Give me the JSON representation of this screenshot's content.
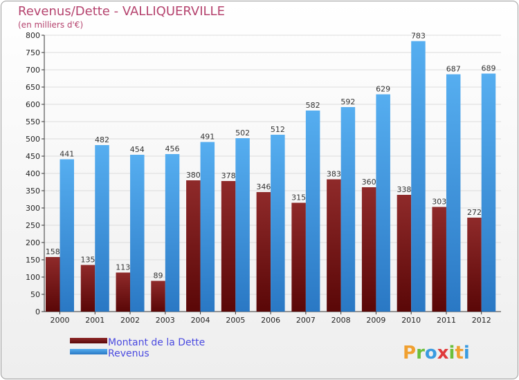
{
  "chart_data": {
    "type": "bar",
    "title": "Revenus/Dette - VALLIQUERVILLE",
    "subtitle": "(en milliers d'€)",
    "categories": [
      "2000",
      "2001",
      "2002",
      "2003",
      "2004",
      "2005",
      "2006",
      "2007",
      "2008",
      "2009",
      "2010",
      "2011",
      "2012"
    ],
    "series": [
      {
        "name": "Montant de la Dette",
        "values": [
          158,
          135,
          113,
          89,
          380,
          378,
          346,
          315,
          383,
          360,
          338,
          303,
          272
        ],
        "color": "#8b1a1a"
      },
      {
        "name": "Revenus",
        "values": [
          441,
          482,
          454,
          456,
          491,
          502,
          512,
          582,
          592,
          629,
          783,
          687,
          689
        ],
        "color": "#4aa0e6"
      }
    ],
    "ylim": [
      0,
      800
    ],
    "yticks": [
      0,
      50,
      100,
      150,
      200,
      250,
      300,
      350,
      400,
      450,
      500,
      550,
      600,
      650,
      700,
      750,
      800
    ],
    "grid": true,
    "legend_position": "bottom-left"
  },
  "brand": {
    "letters": [
      "P",
      "r",
      "o",
      "x",
      "i",
      "t",
      "i"
    ],
    "colors": [
      "#f0a030",
      "#6bbf3a",
      "#3a9be0",
      "#e03a3a",
      "#6bbf3a",
      "#f0a030",
      "#3a9be0"
    ]
  }
}
